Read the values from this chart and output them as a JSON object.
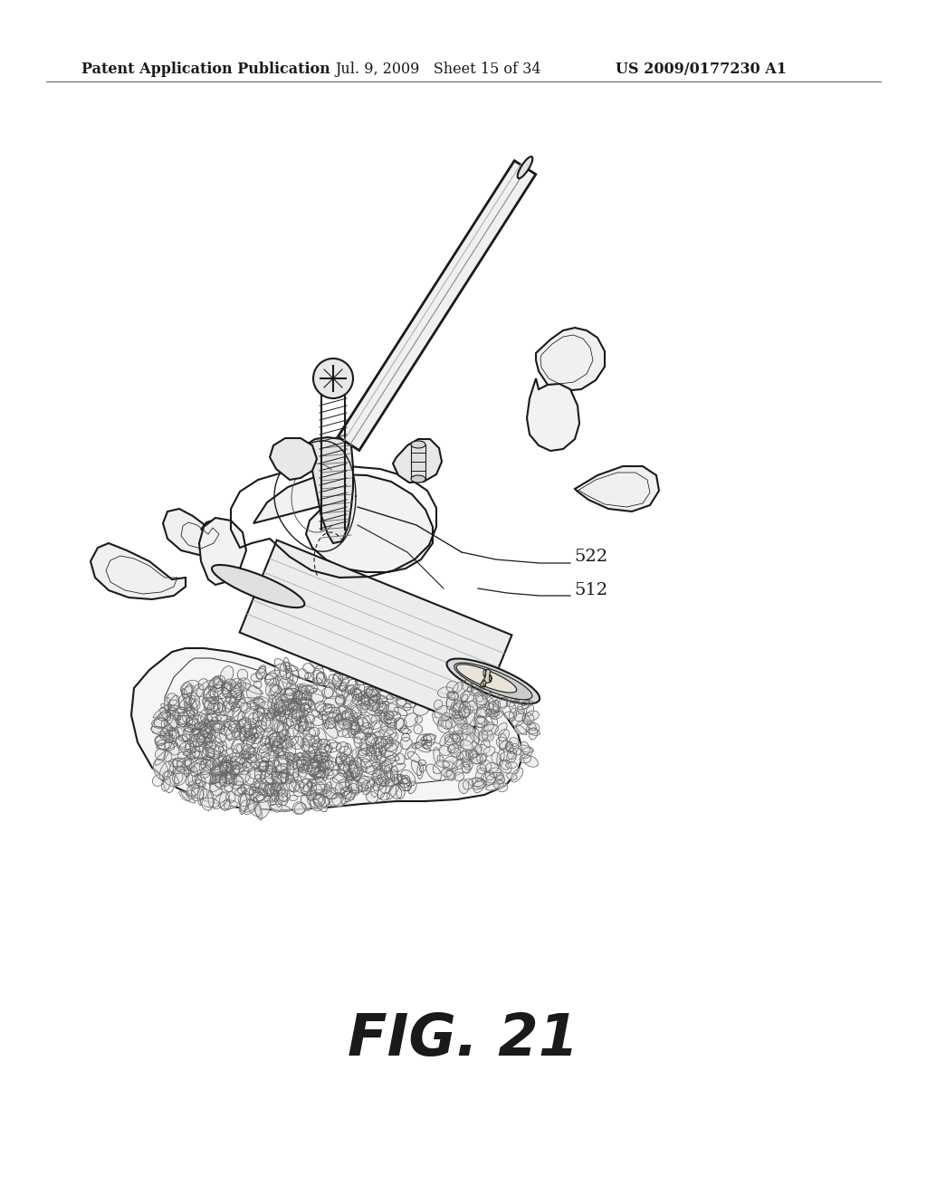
{
  "background_color": "#ffffff",
  "header_left": "Patent Application Publication",
  "header_middle": "Jul. 9, 2009   Sheet 15 of 34",
  "header_right": "US 2009/0177230 A1",
  "header_fontsize": 11.5,
  "figure_label": "FIG. 21",
  "figure_label_fontsize": 46,
  "label_522": "522",
  "label_512": "512",
  "label_fontsize": 14,
  "line_color": "#1a1a1a",
  "fill_white": "#ffffff",
  "fill_light": "#f2f2f2",
  "fill_medium": "#e0e0e0"
}
